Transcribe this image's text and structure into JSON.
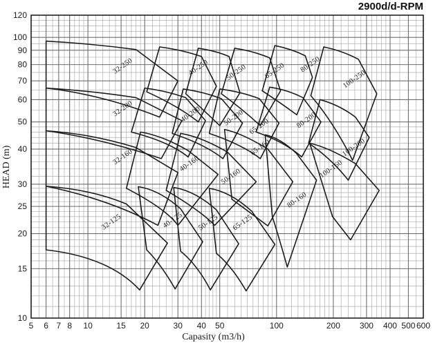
{
  "title": "2900d/d-RPM",
  "chart_data": {
    "type": "area",
    "subtype": "pump-selection-envelope-chart",
    "title": "2900d/d-RPM",
    "xlabel": "Capasity (m3/h)",
    "ylabel": "HEAD (m)",
    "x_scale": "log",
    "y_scale": "log",
    "xlim": [
      5,
      600
    ],
    "ylim": [
      10,
      120
    ],
    "grid": "on",
    "colors": {
      "line": "#1c1c1c",
      "grid_minor": "#aeaeae",
      "grid_major": "#6e6e6e",
      "frame": "#222222",
      "background": "#ffffff"
    },
    "axes": {
      "x_ticks_labeled": [
        5,
        6,
        7,
        8,
        10,
        15,
        20,
        30,
        40,
        50,
        100,
        200,
        300,
        400,
        500,
        600
      ],
      "y_ticks_labeled": [
        10,
        15,
        20,
        25,
        30,
        40,
        50,
        60,
        70,
        80,
        90,
        100,
        120
      ],
      "x_ticks_minor": [
        5.5,
        6.5,
        7.5,
        8.5,
        9,
        9.5,
        11,
        12,
        13,
        14,
        16,
        17,
        18,
        19,
        22,
        24,
        26,
        28,
        32,
        34,
        36,
        38,
        42,
        44,
        46,
        48,
        55,
        60,
        65,
        70,
        75,
        80,
        85,
        90,
        95,
        110,
        120,
        130,
        140,
        150,
        160,
        170,
        180,
        190,
        220,
        240,
        260,
        280,
        320,
        340,
        360,
        380,
        450,
        550
      ],
      "y_ticks_minor": [
        11,
        12,
        13,
        14,
        16,
        17,
        18,
        19,
        21,
        22,
        23,
        24,
        26,
        27,
        28,
        29,
        32,
        34,
        36,
        38,
        42,
        44,
        46,
        48,
        55,
        65,
        75,
        85,
        95,
        105,
        110,
        115
      ]
    },
    "plot": {
      "x0": 45,
      "x1": 612,
      "y0": 461,
      "y1": 22
    },
    "envelopes": [
      {
        "label": "32-250",
        "points": [
          [
            6,
            97
          ],
          [
            10.5,
            95
          ],
          [
            18,
            90.5
          ],
          [
            30,
            70
          ],
          [
            24,
            52
          ],
          [
            12,
            62.5
          ],
          [
            6,
            66
          ]
        ]
      },
      {
        "label": "40-250",
        "points": [
          [
            24,
            92.5
          ],
          [
            31,
            90.5
          ],
          [
            40,
            85.5
          ],
          [
            48,
            67
          ],
          [
            38.5,
            50
          ],
          [
            30,
            57
          ],
          [
            20.5,
            64
          ]
        ]
      },
      {
        "label": "50-250",
        "points": [
          [
            38.5,
            91.5
          ],
          [
            48,
            89.5
          ],
          [
            56,
            85.5
          ],
          [
            64,
            63.5
          ],
          [
            50,
            48.5
          ],
          [
            40,
            56
          ],
          [
            33,
            63
          ]
        ]
      },
      {
        "label": "65-250",
        "points": [
          [
            60,
            91.5
          ],
          [
            76,
            89.3
          ],
          [
            92,
            84.5
          ],
          [
            105,
            64.5
          ],
          [
            82,
            48.5
          ],
          [
            65,
            56
          ],
          [
            51,
            63
          ]
        ]
      },
      {
        "label": "80-250",
        "points": [
          [
            98,
            93.5
          ],
          [
            120,
            91
          ],
          [
            142,
            86
          ],
          [
            155,
            72
          ],
          [
            128,
            53
          ],
          [
            103,
            59
          ],
          [
            84,
            64.5
          ]
        ]
      },
      {
        "label": "100-250",
        "points": [
          [
            178,
            92.5
          ],
          [
            225,
            89.5
          ],
          [
            272,
            83.5
          ],
          [
            340,
            63
          ],
          [
            253,
            36.5
          ],
          [
            200,
            50
          ],
          [
            152,
            62
          ]
        ]
      },
      {
        "label": "32-200",
        "points": [
          [
            6,
            66
          ],
          [
            10.5,
            64.5
          ],
          [
            18,
            61
          ],
          [
            31.5,
            50.5
          ],
          [
            24.5,
            37
          ],
          [
            12,
            43.5
          ],
          [
            6,
            46.5
          ]
        ]
      },
      {
        "label": "40-200",
        "points": [
          [
            20,
            66
          ],
          [
            26,
            64.5
          ],
          [
            33,
            61
          ],
          [
            42,
            50.5
          ],
          [
            34,
            37.5
          ],
          [
            27,
            42.5
          ],
          [
            17,
            46
          ]
        ]
      },
      {
        "label": "50-200",
        "points": [
          [
            32,
            65.5
          ],
          [
            41,
            64
          ],
          [
            51,
            60.5
          ],
          [
            66,
            49.5
          ],
          [
            52,
            37
          ],
          [
            42,
            41.5
          ],
          [
            28,
            45.5
          ]
        ]
      },
      {
        "label": "65-200",
        "points": [
          [
            50,
            65.5
          ],
          [
            65,
            64
          ],
          [
            81,
            60.5
          ],
          [
            103,
            49.5
          ],
          [
            82,
            37
          ],
          [
            66,
            41.5
          ],
          [
            44,
            45.5
          ]
        ]
      },
      {
        "label": "80-200",
        "points": [
          [
            92,
            66.5
          ],
          [
            115,
            65
          ],
          [
            138,
            61
          ],
          [
            172,
            50
          ],
          [
            136,
            37.5
          ],
          [
            110,
            42.5
          ],
          [
            78,
            46
          ]
        ]
      },
      {
        "label": "100-200",
        "points": [
          [
            170,
            60
          ],
          [
            215,
            57.5
          ],
          [
            262,
            52
          ],
          [
            310,
            44
          ],
          [
            240,
            31
          ],
          [
            195,
            37
          ],
          [
            148,
            42
          ]
        ]
      },
      {
        "label": "32-160",
        "points": [
          [
            6,
            46.5
          ],
          [
            10.5,
            45.3
          ],
          [
            18,
            40.5
          ],
          [
            30,
            33
          ],
          [
            23.5,
            21.4
          ],
          [
            13,
            26.5
          ],
          [
            6,
            29.5
          ]
        ]
      },
      {
        "label": "40-160",
        "points": [
          [
            19,
            46
          ],
          [
            25,
            44.6
          ],
          [
            34,
            39.5
          ],
          [
            49,
            32.5
          ],
          [
            30,
            21.4
          ],
          [
            26,
            24.5
          ],
          [
            16,
            29
          ]
        ]
      },
      {
        "label": "50-160",
        "points": [
          [
            31,
            45.5
          ],
          [
            40,
            44.2
          ],
          [
            55,
            39
          ],
          [
            78,
            30.6
          ],
          [
            47,
            21.4
          ],
          [
            40,
            24
          ],
          [
            26,
            28.5
          ]
        ]
      },
      {
        "label": "65-160",
        "points": [
          [
            53,
            47
          ],
          [
            66,
            45.5
          ],
          [
            90,
            40
          ],
          [
            122,
            30.6
          ],
          [
            90,
            21.3
          ],
          [
            74,
            23.5
          ],
          [
            58,
            26.5
          ]
        ]
      },
      {
        "label": "80-160",
        "points": [
          [
            87,
            45
          ],
          [
            105,
            43.8
          ],
          [
            128,
            38.5
          ],
          [
            163,
            31
          ],
          [
            114,
            15.2
          ],
          [
            104,
            19
          ],
          [
            95,
            23
          ]
        ]
      },
      {
        "label": "100-160",
        "points": [
          [
            150,
            42
          ],
          [
            190,
            40.5
          ],
          [
            262,
            35.5
          ],
          [
            350,
            28.5
          ],
          [
            247,
            19
          ],
          [
            220,
            21
          ],
          [
            198,
            23
          ]
        ]
      },
      {
        "label": "32-125",
        "points": [
          [
            6,
            29.5
          ],
          [
            10.5,
            28.7
          ],
          [
            16,
            25.5
          ],
          [
            26.4,
            18.5
          ],
          [
            18.8,
            12.6
          ],
          [
            13,
            16.5
          ],
          [
            6,
            17.5
          ]
        ]
      },
      {
        "label": "40-125",
        "points": [
          [
            18.5,
            29.4
          ],
          [
            24,
            28.6
          ],
          [
            31,
            24.5
          ],
          [
            40.6,
            18.7
          ],
          [
            29,
            12.7
          ],
          [
            24.5,
            15.5
          ],
          [
            20.5,
            17.5
          ]
        ]
      },
      {
        "label": "50-125",
        "points": [
          [
            28.5,
            29.2
          ],
          [
            37,
            28.4
          ],
          [
            48,
            24.3
          ],
          [
            63,
            18.4
          ],
          [
            44.6,
            12.6
          ],
          [
            38,
            15.5
          ],
          [
            31,
            17.3
          ]
        ]
      },
      {
        "label": "65-125",
        "points": [
          [
            44,
            29
          ],
          [
            57,
            28.2
          ],
          [
            74,
            24
          ],
          [
            98,
            18.3
          ],
          [
            69,
            12.5
          ],
          [
            58,
            15.3
          ],
          [
            48,
            17
          ]
        ]
      }
    ],
    "envelope_labels": [
      {
        "label": "32-250",
        "q": 15.5,
        "h": 78,
        "angle": -35
      },
      {
        "label": "40-250",
        "q": 39,
        "h": 77,
        "angle": -35
      },
      {
        "label": "50-250",
        "q": 62,
        "h": 74,
        "angle": -35
      },
      {
        "label": "65-250",
        "q": 99,
        "h": 75,
        "angle": -35
      },
      {
        "label": "80-250",
        "q": 153,
        "h": 79,
        "angle": -35
      },
      {
        "label": "100-250",
        "q": 262,
        "h": 70,
        "angle": -35
      },
      {
        "label": "32-200",
        "q": 15.5,
        "h": 55,
        "angle": -35
      },
      {
        "label": "40-200",
        "q": 35.5,
        "h": 52.5,
        "angle": -35
      },
      {
        "label": "50-200",
        "q": 60,
        "h": 51,
        "angle": -35
      },
      {
        "label": "65-200",
        "q": 82,
        "h": 47.5,
        "angle": -35
      },
      {
        "label": "80-200",
        "q": 146,
        "h": 50,
        "angle": -35
      },
      {
        "label": "100-200",
        "q": 260,
        "h": 40,
        "angle": -35
      },
      {
        "label": "32-160",
        "q": 15.5,
        "h": 37,
        "angle": -35
      },
      {
        "label": "40-160",
        "q": 35,
        "h": 35,
        "angle": -35
      },
      {
        "label": "50-160",
        "q": 58,
        "h": 31.5,
        "angle": -35
      },
      {
        "label": "65-160",
        "q": 83,
        "h": 40,
        "angle": -35
      },
      {
        "label": "80-160",
        "q": 130,
        "h": 26,
        "angle": -35
      },
      {
        "label": "100-160",
        "q": 197,
        "h": 33.5,
        "angle": -35
      },
      {
        "label": "32-125",
        "q": 13.5,
        "h": 21.7,
        "angle": -35
      },
      {
        "label": "40-125",
        "q": 28.5,
        "h": 22,
        "angle": -35
      },
      {
        "label": "50-125",
        "q": 44,
        "h": 21.6,
        "angle": -35
      },
      {
        "label": "65-125",
        "q": 67,
        "h": 21.6,
        "angle": -35
      }
    ]
  }
}
